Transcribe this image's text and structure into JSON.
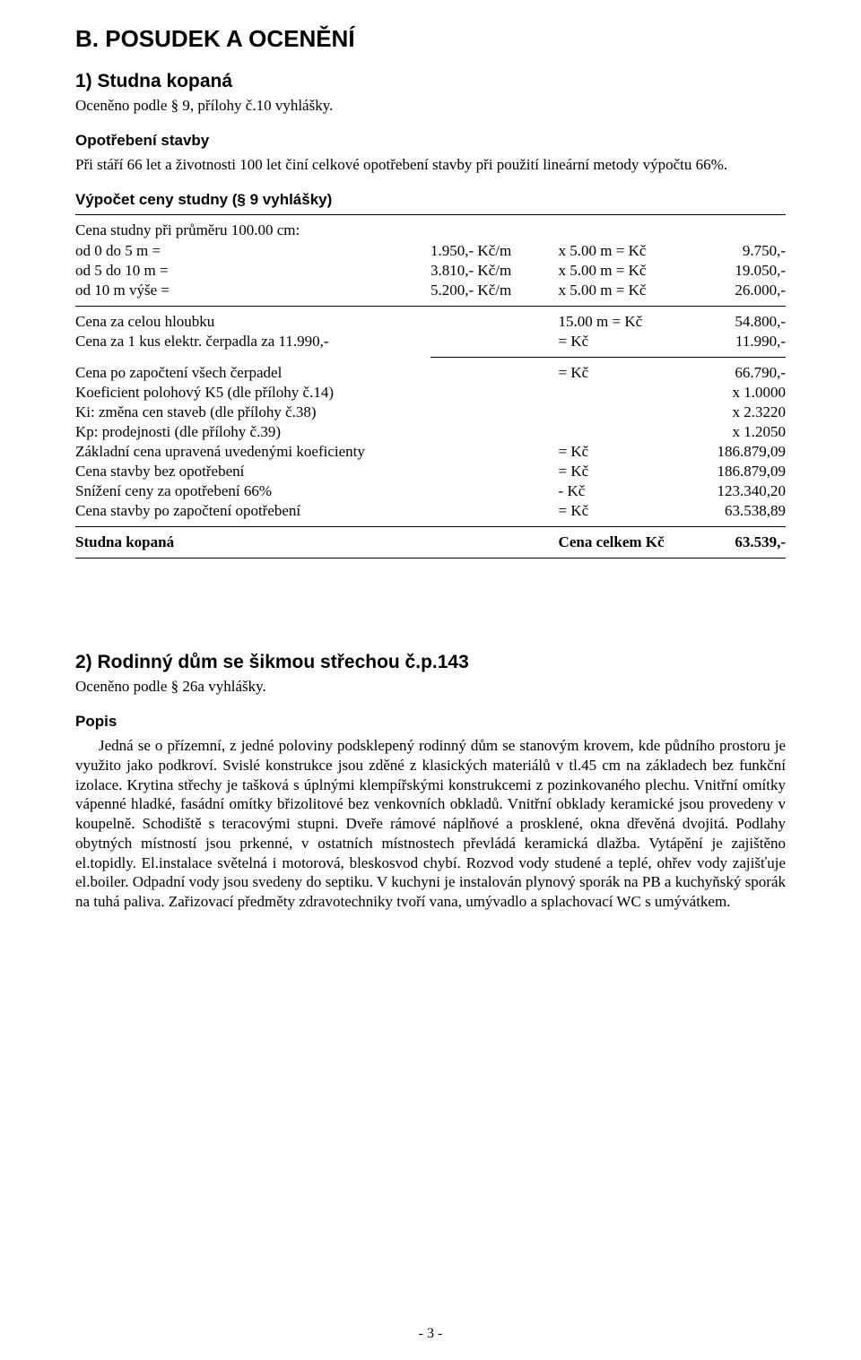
{
  "section_heading": "B. POSUDEK A OCENĚNÍ",
  "item1": {
    "title": "1) Studna kopaná",
    "valued_by": "Oceněno podle § 9, přílohy č.10 vyhlášky.",
    "wear_head": "Opotřebení stavby",
    "wear_text": "Při stáří 66 let a životnosti 100 let činí celkové opotřebení stavby při použití lineární metody výpočtu 66%.",
    "calc_head": "Výpočet ceny studny (§ 9 vyhlášky)",
    "price_line": "Cena studny při průměru 100.00 cm:",
    "rows_a": [
      {
        "c1": "od 0 do 5 m =",
        "c2": "1.950,- Kč/m",
        "c3": "x 5.00 m = Kč",
        "c4": "9.750,-"
      },
      {
        "c1": "od 5 do 10 m =",
        "c2": "3.810,- Kč/m",
        "c3": "x 5.00 m = Kč",
        "c4": "19.050,-"
      },
      {
        "c1": "od 10 m výše =",
        "c2": "5.200,- Kč/m",
        "c3": "x 5.00 m = Kč",
        "c4": "26.000,-"
      }
    ],
    "rows_b": [
      {
        "c1": "Cena za celou hloubku",
        "c2": "",
        "c3": "15.00 m = Kč",
        "c4": "54.800,-"
      },
      {
        "c1": "Cena za 1 kus elektr. čerpadla za 11.990,-",
        "c2": "",
        "c3": "= Kč",
        "c4": "11.990,-"
      }
    ],
    "rows_c": [
      {
        "c1": "Cena po započtení všech čerpadel",
        "c2": "",
        "c3": "= Kč",
        "c4": "66.790,-"
      },
      {
        "c1": "Koeficient polohový K5 (dle přílohy č.14)",
        "c2": "",
        "c3": "",
        "c4": "x 1.0000"
      },
      {
        "c1": "Ki: změna cen staveb (dle přílohy č.38)",
        "c2": "",
        "c3": "",
        "c4": "x 2.3220"
      },
      {
        "c1": "Kp: prodejnosti (dle přílohy č.39)",
        "c2": "",
        "c3": "",
        "c4": "x 1.2050"
      },
      {
        "c1": "Základní cena upravená uvedenými koeficienty",
        "c2": "",
        "c3": "= Kč",
        "c4": "186.879,09"
      },
      {
        "c1": "Cena stavby bez opotřebení",
        "c2": "",
        "c3": "= Kč",
        "c4": "186.879,09"
      },
      {
        "c1": "Snížení ceny za opotřebení 66%",
        "c2": "",
        "c3": "- Kč",
        "c4": "123.340,20"
      },
      {
        "c1": "Cena stavby po započtení opotřebení",
        "c2": "",
        "c3": "= Kč",
        "c4": "63.538,89"
      }
    ],
    "total": {
      "c1": "Studna kopaná",
      "c3": "Cena celkem Kč",
      "c4": "63.539,-"
    }
  },
  "item2": {
    "title": "2) Rodinný dům se šikmou střechou č.p.143",
    "valued_by": "Oceněno podle § 26a vyhlášky.",
    "popis_head": "Popis",
    "popis_text": "Jedná se o přízemní, z jedné poloviny podsklepený rodinný dům se stanovým krovem, kde půdního prostoru je využito jako podkroví. Svislé konstrukce jsou zděné z klasických materiálů v tl.45 cm na základech bez funkční izolace. Krytina střechy je tašková s úplnými klempířskými konstrukcemi z pozinkovaného plechu. Vnitřní omítky vápenné hladké, fasádní omítky břizolitové bez venkovních obkladů. Vnitřní obklady keramické jsou provedeny v koupelně. Schodiště s teracovými stupni. Dveře rámové náplňové a prosklené, okna dřevěná dvojitá. Podlahy obytných místností jsou prkenné, v ostatních místnostech převládá keramická dlažba. Vytápění je zajištěno el.topidly. El.instalace světelná i motorová, bleskosvod chybí. Rozvod vody studené a teplé, ohřev vody zajišťuje el.boiler. Odpadní vody jsou svedeny do septiku. V kuchyni je instalován plynový sporák na PB a kuchyňský sporák na tuhá paliva. Zařizovací předměty zdravotechniky tvoří vana, umývadlo a splachovací WC s umývátkem."
  },
  "page_number": "- 3 -"
}
